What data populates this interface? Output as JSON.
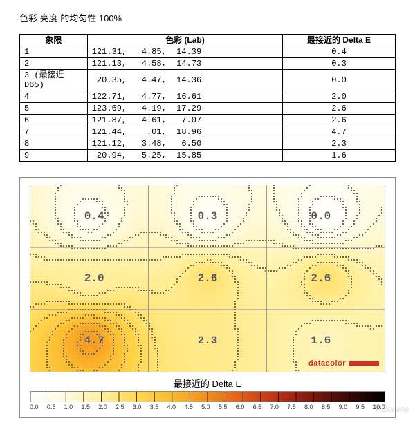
{
  "title": "色彩 亮度 的均匀性 100%",
  "table": {
    "headers": {
      "quadrant": "象限",
      "lab": "色彩 (Lab)",
      "deltaE": "最接近的 Delta E"
    },
    "rows": [
      {
        "q": "1",
        "lab": "121.31,   4.85,  14.39",
        "de": "0.4"
      },
      {
        "q": "2",
        "lab": "121.13,   4.58,  14.73",
        "de": "0.3"
      },
      {
        "q": "3 (最接近 D65)",
        "lab": " 20.35,   4.47,  14.36",
        "de": "0.0"
      },
      {
        "q": "4",
        "lab": "122.71,   4.77,  16.61",
        "de": "2.0"
      },
      {
        "q": "5",
        "lab": "123.69,   4.19,  17.29",
        "de": "2.6"
      },
      {
        "q": "6",
        "lab": "121.87,   4.61,   7.07",
        "de": "2.6"
      },
      {
        "q": "7",
        "lab": "121.44,    .01,  18.96",
        "de": "4.7"
      },
      {
        "q": "8",
        "lab": "121.12,   3.48,   6.50",
        "de": "2.3"
      },
      {
        "q": "9",
        "lab": " 20.94,   5.25,  15.85",
        "de": "1.6"
      }
    ]
  },
  "heatmap": {
    "type": "contour-heatmap",
    "grid": {
      "rows": 3,
      "cols": 3
    },
    "region_values": [
      [
        0.4,
        0.3,
        0.0
      ],
      [
        2.0,
        2.6,
        2.6
      ],
      [
        4.7,
        2.3,
        1.6
      ]
    ],
    "region_labels": [
      [
        "0.4",
        "0.3",
        "0.0"
      ],
      [
        "2.0",
        "2.6",
        "2.6"
      ],
      [
        "4.7",
        "2.3",
        "1.6"
      ]
    ],
    "background_color": "#ffffff",
    "grid_line_color": "#888888",
    "contour_line_color": "#666666",
    "brand_text": "datacolor",
    "brand_color": "#d92a2a",
    "colorscale": {
      "label": "最接近的 Delta E",
      "min": 0.0,
      "max": 10.0,
      "tick_step": 0.5,
      "ticks": [
        "0.0",
        "0.5",
        "1.0",
        "1.5",
        "2.0",
        "2.5",
        "3.0",
        "3.5",
        "4.0",
        "4.5",
        "5.0",
        "5.5",
        "6.0",
        "6.5",
        "7.0",
        "7.5",
        "8.0",
        "8.5",
        "9.0",
        "9.5",
        "10.0"
      ],
      "stops": [
        {
          "pos": 0.0,
          "color": "#ffffff"
        },
        {
          "pos": 0.1,
          "color": "#fffbe0"
        },
        {
          "pos": 0.2,
          "color": "#fff0a0"
        },
        {
          "pos": 0.3,
          "color": "#ffd850"
        },
        {
          "pos": 0.4,
          "color": "#fbb92d"
        },
        {
          "pos": 0.5,
          "color": "#f28f1e"
        },
        {
          "pos": 0.6,
          "color": "#e05a1a"
        },
        {
          "pos": 0.7,
          "color": "#b83015"
        },
        {
          "pos": 0.8,
          "color": "#7a1810"
        },
        {
          "pos": 0.9,
          "color": "#3a0805"
        },
        {
          "pos": 1.0,
          "color": "#000000"
        }
      ]
    }
  },
  "watermark": "PConline"
}
